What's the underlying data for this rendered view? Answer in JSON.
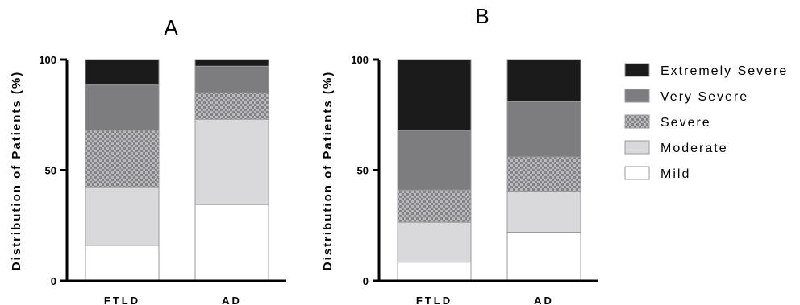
{
  "colors": {
    "Mild": "#ffffff",
    "Moderate": "#d9d9db",
    "Severe": "pattern",
    "Very Severe": "#7d7d80",
    "Extremely Severe": "#1b1b1b",
    "axis": "#000000"
  },
  "legend": {
    "placement": "right",
    "entries": [
      "Extremely Severe",
      "Very Severe",
      "Severe",
      "Moderate",
      "Mild"
    ]
  },
  "chart_data": [
    {
      "type": "bar",
      "stacked": true,
      "title": "A",
      "ylabel": "Distribution of Patients (%)",
      "ylim": [
        0,
        100
      ],
      "yticks": [
        "0",
        "50",
        "100"
      ],
      "categories": [
        "FTLD",
        "AD"
      ],
      "series": [
        {
          "name": "Mild",
          "values": [
            16,
            34.5
          ]
        },
        {
          "name": "Moderate",
          "values": [
            26.5,
            38.5
          ]
        },
        {
          "name": "Severe",
          "values": [
            25.5,
            12
          ]
        },
        {
          "name": "Very Severe",
          "values": [
            20.5,
            12
          ]
        },
        {
          "name": "Extremely Severe",
          "values": [
            11.5,
            3
          ]
        }
      ]
    },
    {
      "type": "bar",
      "stacked": true,
      "title": "B",
      "ylabel": "Distribution of Patients (%)",
      "ylim": [
        0,
        100
      ],
      "yticks": [
        "0",
        "50",
        "100"
      ],
      "categories": [
        "FTLD",
        "AD"
      ],
      "series": [
        {
          "name": "Mild",
          "values": [
            8.5,
            22
          ]
        },
        {
          "name": "Moderate",
          "values": [
            18,
            18.5
          ]
        },
        {
          "name": "Severe",
          "values": [
            14.5,
            15.5
          ]
        },
        {
          "name": "Very Severe",
          "values": [
            27,
            25
          ]
        },
        {
          "name": "Extremely Severe",
          "values": [
            32,
            19
          ]
        }
      ]
    }
  ]
}
